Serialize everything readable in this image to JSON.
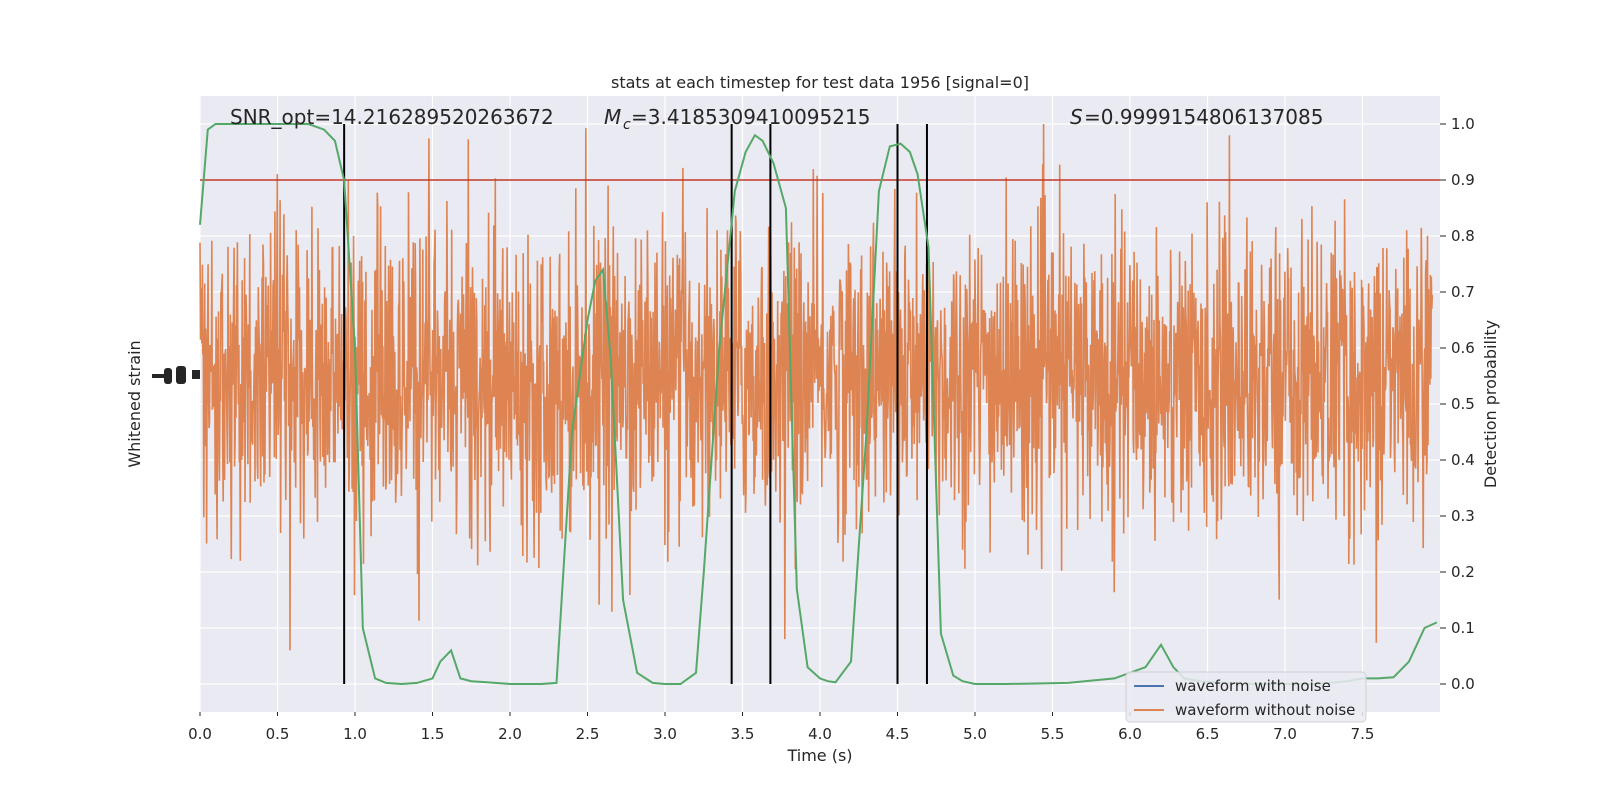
{
  "chart_data": {
    "type": "line",
    "title": "stats at each timestep for test data 1956 [signal=0]",
    "xlabel": "Time (s)",
    "ylabel_left": "Whitened strain",
    "ylabel_right": "Detection probability",
    "annotations": {
      "snr": "SNR_opt=14.216289520263672",
      "mc_value": "=3.4185309410095215",
      "s_value": "=0.9999154806137085"
    },
    "xlim": [
      0,
      8.0
    ],
    "ylim_right": [
      -0.05,
      1.05
    ],
    "grid": true,
    "legend_position": "lower-right",
    "x_ticks": [
      0.0,
      0.5,
      1.0,
      1.5,
      2.0,
      2.5,
      3.0,
      3.5,
      4.0,
      4.5,
      5.0,
      5.5,
      6.0,
      6.5,
      7.0,
      7.5
    ],
    "x_tick_labels": [
      "0.0",
      "0.5",
      "1.0",
      "1.5",
      "2.0",
      "2.5",
      "3.0",
      "3.5",
      "4.0",
      "4.5",
      "5.0",
      "5.5",
      "6.0",
      "6.5",
      "7.0",
      "7.5"
    ],
    "y_right_ticks": [
      0.0,
      0.1,
      0.2,
      0.3,
      0.4,
      0.5,
      0.6,
      0.7,
      0.8,
      0.9,
      1.0
    ],
    "y_right_tick_labels": [
      "0.0",
      "0.1",
      "0.2",
      "0.3",
      "0.4",
      "0.5",
      "0.6",
      "0.7",
      "0.8",
      "0.9",
      "1.0"
    ],
    "threshold": 0.9,
    "threshold_color": "#c0392b",
    "crossing_lines": [
      0.93,
      3.43,
      3.68,
      4.5,
      4.69
    ],
    "series": [
      {
        "name": "waveform with noise",
        "color": "#4c72b0",
        "note_values": "whitened strain (covered by orange trace)"
      },
      {
        "name": "waveform without noise",
        "color": "#dd8452",
        "noise_sigma": 0.13,
        "center": 0.55
      },
      {
        "color": "#55a868",
        "x": [
          0.0,
          0.05,
          0.1,
          0.2,
          0.3,
          0.4,
          0.5,
          0.6,
          0.7,
          0.8,
          0.87,
          0.93,
          1.0,
          1.05,
          1.13,
          1.2,
          1.3,
          1.4,
          1.5,
          1.55,
          1.62,
          1.68,
          1.75,
          1.85,
          2.0,
          2.2,
          2.3,
          2.4,
          2.5,
          2.55,
          2.6,
          2.65,
          2.73,
          2.82,
          2.92,
          3.0,
          3.1,
          3.2,
          3.25,
          3.35,
          3.45,
          3.52,
          3.58,
          3.63,
          3.7,
          3.78,
          3.85,
          3.92,
          4.0,
          4.05,
          4.1,
          4.2,
          4.3,
          4.38,
          4.45,
          4.52,
          4.58,
          4.63,
          4.7,
          4.78,
          4.86,
          4.92,
          5.0,
          5.2,
          5.6,
          5.9,
          6.1,
          6.2,
          6.28,
          6.35,
          6.45,
          6.6,
          6.8,
          7.0,
          7.2,
          7.4,
          7.5,
          7.6,
          7.7,
          7.8,
          7.9,
          7.98
        ],
        "values": [
          0.82,
          0.99,
          1.0,
          1.0,
          1.0,
          1.0,
          1.0,
          1.0,
          1.0,
          0.99,
          0.97,
          0.9,
          0.6,
          0.1,
          0.01,
          0.002,
          0.0,
          0.002,
          0.01,
          0.04,
          0.06,
          0.01,
          0.005,
          0.003,
          0.0,
          0.0,
          0.002,
          0.45,
          0.65,
          0.72,
          0.74,
          0.58,
          0.15,
          0.02,
          0.002,
          0.0,
          0.0,
          0.02,
          0.2,
          0.6,
          0.88,
          0.95,
          0.98,
          0.97,
          0.93,
          0.85,
          0.17,
          0.03,
          0.01,
          0.005,
          0.003,
          0.04,
          0.45,
          0.88,
          0.96,
          0.965,
          0.95,
          0.91,
          0.78,
          0.09,
          0.015,
          0.005,
          0.0,
          0.0,
          0.002,
          0.01,
          0.03,
          0.07,
          0.03,
          0.01,
          0.005,
          0.002,
          0.0,
          0.0,
          0.0,
          0.005,
          0.01,
          0.01,
          0.012,
          0.04,
          0.1,
          0.11
        ]
      }
    ]
  }
}
